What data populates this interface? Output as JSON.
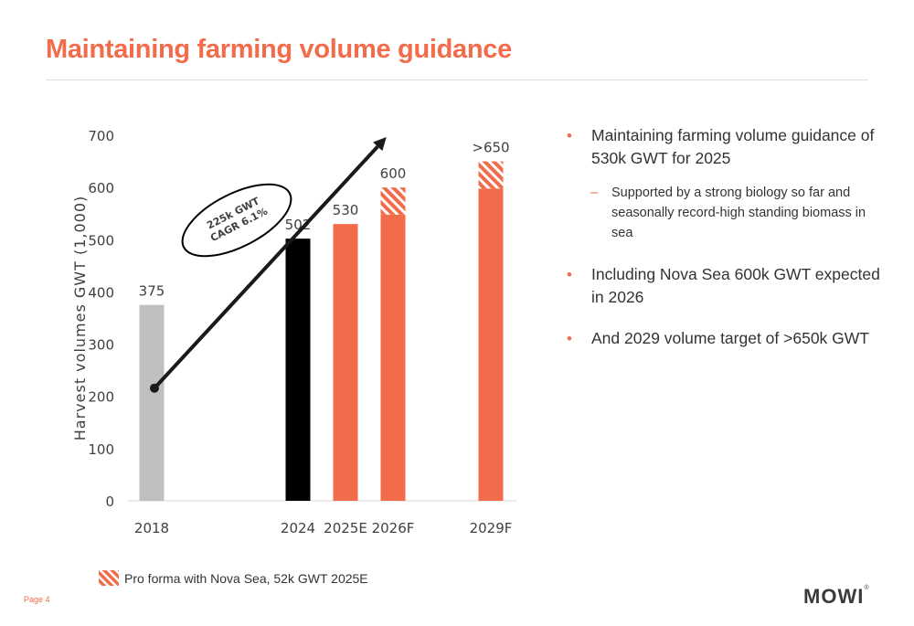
{
  "slide": {
    "title": "Maintaining farming volume guidance",
    "page_label": "Page 4",
    "logo": "MOWI",
    "logo_mark": "®"
  },
  "bullets": [
    {
      "text": "Maintaining farming volume guidance of 530k GWT for 2025",
      "level": 1
    },
    {
      "text": "Supported by a strong biology so far and seasonally record-high standing biomass in sea",
      "level": 2
    },
    {
      "text": "Including Nova Sea 600k GWT expected in 2026",
      "level": 1
    },
    {
      "text": "And 2029 volume target of >650k GWT",
      "level": 1
    }
  ],
  "legend": {
    "label": "Pro forma with Nova Sea, 52k GWT 2025E"
  },
  "colors": {
    "accent": "#f26b4a",
    "bar_2018": "#bfbfbf",
    "bar_2024": "#000000",
    "bar_forecast": "#f26b4a"
  },
  "chart_data": {
    "type": "bar",
    "ylabel": "Harvest volumes GWT (1,000)",
    "ylim": [
      0,
      700
    ],
    "yticks": [
      0,
      100,
      200,
      300,
      400,
      500,
      600,
      700
    ],
    "categories": [
      "2018",
      "2024",
      "2025E",
      "2026F",
      "2029F"
    ],
    "values": [
      375,
      502,
      530,
      600,
      650
    ],
    "value_labels": [
      "375",
      "502",
      "530",
      "600",
      ">650"
    ],
    "pro_forma_nova_sea": [
      0,
      0,
      0,
      52,
      52
    ],
    "bar_colors": [
      "#bfbfbf",
      "#000000",
      "#f26b4a",
      "#f26b4a",
      "#f26b4a"
    ],
    "annotation": {
      "line1": "225k GWT",
      "line2": "CAGR 6.1%"
    },
    "grid": false
  }
}
